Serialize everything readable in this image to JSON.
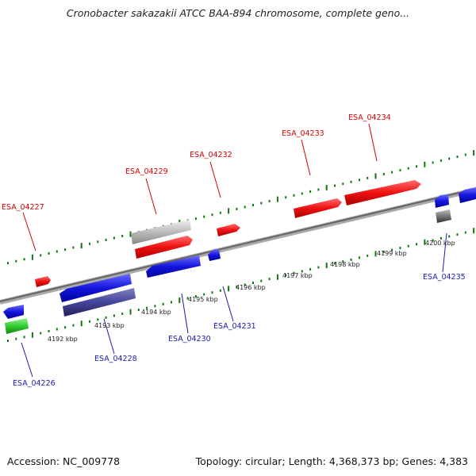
{
  "title": "Cronobacter sakazakii ATCC BAA-894 chromosome, complete geno...",
  "footer": {
    "accession": "Accession: NC_009778",
    "summary": "Topology: circular; Length: 4,368,373 bp; Genes: 4,383"
  },
  "colors": {
    "forward_gene": "#ee1111",
    "reverse_gene": "#1111dd",
    "pseudo_gene": "#bbbbbb",
    "rna_gene": "#33cc33",
    "other_gene": "#777777",
    "dark_blue_gene": "#44449a",
    "ticks": "#117711",
    "backbone": "#888888"
  },
  "kbp_labels": [
    "4192 kbp",
    "4193 kbp",
    "4194 kbp",
    "4195 kbp",
    "4196 kbp",
    "4197 kbp",
    "4198 kbp",
    "4199 kbp",
    "4200 kbp"
  ],
  "genes_forward": [
    {
      "id": "ESA_04227"
    },
    {
      "id": "ESA_04229"
    },
    {
      "id": "ESA_04232"
    },
    {
      "id": "ESA_04233"
    },
    {
      "id": "ESA_04234"
    }
  ],
  "genes_reverse": [
    {
      "id": "ESA_04226"
    },
    {
      "id": "ESA_04228"
    },
    {
      "id": "ESA_04230"
    },
    {
      "id": "ESA_04231"
    },
    {
      "id": "ESA_04235"
    }
  ]
}
